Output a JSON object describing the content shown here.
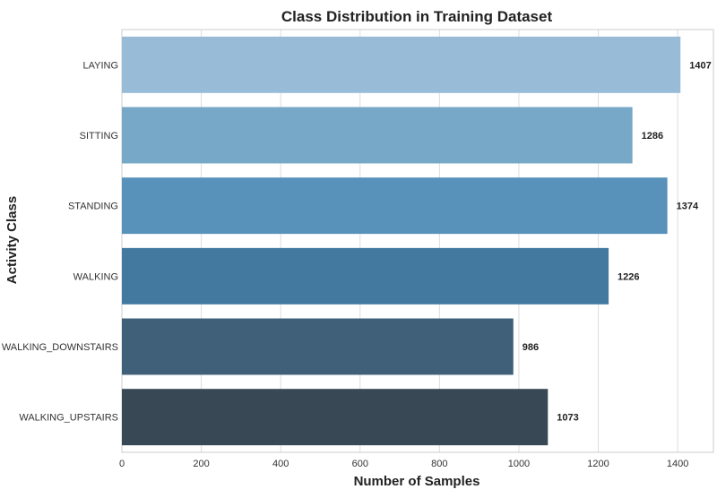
{
  "chart_data": {
    "type": "bar",
    "orientation": "horizontal",
    "title": "Class Distribution in Training Dataset",
    "xlabel": "Number of Samples",
    "ylabel": "Activity Class",
    "categories": [
      "LAYING",
      "SITTING",
      "STANDING",
      "WALKING",
      "WALKING_DOWNSTAIRS",
      "WALKING_UPSTAIRS"
    ],
    "values": [
      1407,
      1286,
      1374,
      1226,
      986,
      1073
    ],
    "data_labels": [
      "1407",
      "1286",
      "1374",
      "1226",
      "986",
      "1073"
    ],
    "colors": [
      "#98bcd8",
      "#77a8c8",
      "#5892bb",
      "#43799f",
      "#3f6078",
      "#384955"
    ],
    "xlim": [
      0,
      1490
    ],
    "xticks": [
      0,
      200,
      400,
      600,
      800,
      1000,
      1200,
      1400
    ],
    "xtick_labels": [
      "0",
      "200",
      "400",
      "600",
      "800",
      "1000",
      "1200",
      "1400"
    ],
    "grid": true,
    "gridline_color": "#dddddd",
    "frame_color": "#cccccc"
  }
}
